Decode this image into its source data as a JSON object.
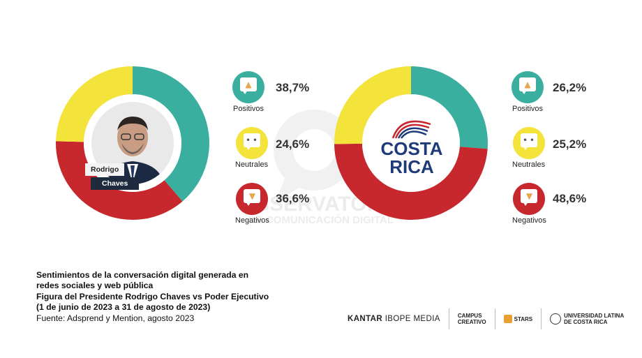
{
  "watermark": {
    "line1": "OBSERVATORIO",
    "line2": "DE COMUNICACIÓN DIGITAL"
  },
  "chart_data": [
    {
      "type": "pie",
      "subject": "Rodrigo Chaves",
      "categories": [
        "Positivos",
        "Neutrales",
        "Negativos"
      ],
      "values": [
        38.7,
        24.6,
        36.6
      ],
      "labels": [
        "38,7%",
        "24,6%",
        "36,6%"
      ],
      "colors": [
        "#3aafa0",
        "#f3e33a",
        "#c6282e"
      ]
    },
    {
      "type": "pie",
      "subject": "Poder Ejecutivo",
      "categories": [
        "Positivos",
        "Neutrales",
        "Negativos"
      ],
      "values": [
        26.2,
        25.2,
        48.6
      ],
      "labels": [
        "26,2%",
        "25,2%",
        "48,6%"
      ],
      "colors": [
        "#3aafa0",
        "#f3e33a",
        "#c6282e"
      ]
    }
  ],
  "left_center": {
    "name_line1": "Rodrigo",
    "name_line2": "Chaves"
  },
  "right_center": {
    "logo_line1": "COSTA",
    "logo_line2": "RICA"
  },
  "caption": {
    "line1": "Sentimientos de la conversación digital generada en",
    "line2": "redes sociales y web pública",
    "line3": "Figura del Presidente Rodrigo Chaves vs Poder Ejecutivo",
    "line4": "(1 de junio de 2023 a 31 de agosto de 2023)",
    "source": "Fuente: Adsprend y Mention, agosto 2023"
  },
  "logos": {
    "kantar_bold": "KANTAR",
    "kantar_rest": " IBOPE MEDIA",
    "campus1": "CAMPUS",
    "campus2": "CREATIVO",
    "stars": "STARS",
    "ulatina1": "UNIVERSIDAD LATINA",
    "ulatina2": "DE COSTA RICA"
  },
  "icons": [
    "thumbs-up-icon",
    "neutral-face-icon",
    "thumbs-down-icon"
  ]
}
